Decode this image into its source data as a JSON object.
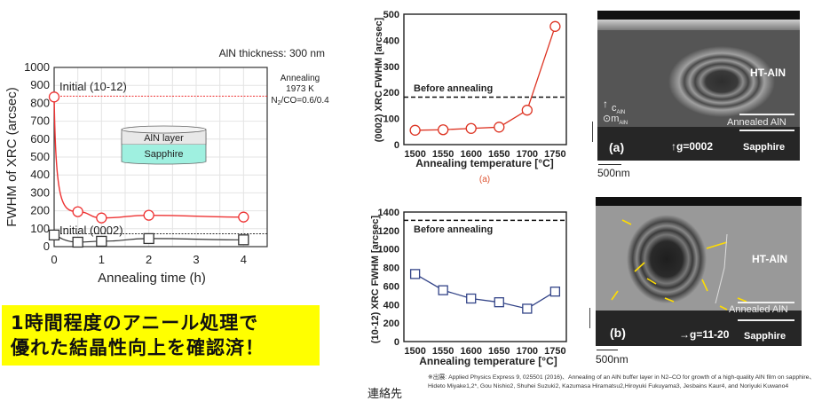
{
  "chart_data": [
    {
      "type": "line",
      "title": "",
      "annotation_top": "AlN thickness: 300 nm",
      "annotation_conditions": [
        "Annealing",
        "1973 K",
        "N2/CO=0.6/0.4"
      ],
      "xlabel": "Annealing time (h)",
      "ylabel": "FWHM of XRC (arcsec)",
      "xlim": [
        0,
        4.5
      ],
      "ylim": [
        0,
        1000
      ],
      "xticks": [
        0,
        1,
        2,
        3,
        4
      ],
      "yticks": [
        0,
        100,
        200,
        300,
        400,
        500,
        600,
        700,
        800,
        900,
        1000
      ],
      "grid": true,
      "x": [
        0,
        0.5,
        1,
        2,
        4
      ],
      "series": [
        {
          "name": "(10-12)",
          "marker": "circle",
          "color": "#ee3333",
          "values": [
            835,
            195,
            160,
            175,
            165
          ]
        },
        {
          "name": "(0002)",
          "marker": "square",
          "color": "#333333",
          "values": [
            65,
            25,
            30,
            45,
            38
          ]
        }
      ],
      "reference_lines": [
        {
          "label": "Initial (10-12)",
          "value": 840,
          "color": "#ee3333",
          "style": "dotted"
        },
        {
          "label": "Initial (0002)",
          "value": 72,
          "color": "#333333",
          "style": "dotted"
        }
      ],
      "inset": {
        "top_layer": "AlN layer",
        "bottom_layer": "Sapphire"
      }
    },
    {
      "type": "line",
      "caption": "(a)",
      "xlabel": "Annealing temperature [°C]",
      "ylabel": "(0002) XRC FWHM [arcsec]",
      "xlim": [
        1480,
        1770
      ],
      "ylim": [
        0,
        500
      ],
      "xticks": [
        1500,
        1550,
        1600,
        1650,
        1700,
        1750
      ],
      "yticks": [
        0,
        100,
        200,
        300,
        400,
        500
      ],
      "grid": false,
      "x": [
        1500,
        1550,
        1600,
        1650,
        1700,
        1750
      ],
      "series": [
        {
          "name": "(0002)",
          "marker": "circle",
          "color": "#dd3322",
          "values": [
            55,
            57,
            62,
            67,
            132,
            453
          ]
        }
      ],
      "reference_lines": [
        {
          "label": "Before annealing",
          "value": 182,
          "color": "#111111",
          "style": "dashed"
        }
      ]
    },
    {
      "type": "line",
      "xlabel": "Annealing temperature [°C]",
      "ylabel": "(10-12) XRC FWHM [arcsec]",
      "xlim": [
        1480,
        1770
      ],
      "ylim": [
        0,
        1400
      ],
      "xticks": [
        1500,
        1550,
        1600,
        1650,
        1700,
        1750
      ],
      "yticks": [
        0,
        200,
        400,
        600,
        800,
        1000,
        1200,
        1400
      ],
      "grid": false,
      "x": [
        1500,
        1550,
        1600,
        1650,
        1700,
        1750
      ],
      "series": [
        {
          "name": "(10-12)",
          "marker": "square",
          "color": "#334488",
          "values": [
            730,
            555,
            465,
            425,
            355,
            540
          ]
        }
      ],
      "reference_lines": [
        {
          "label": "Before annealing",
          "value": 1310,
          "color": "#111111",
          "style": "dashed"
        }
      ]
    }
  ],
  "left_chart": {
    "thickness": "AlN thickness: 300 nm",
    "cond1": "Annealing",
    "cond2": "1973 K",
    "cond3_pre": "N",
    "cond3_sub": "2",
    "cond3_post": "/CO=0.6/0.4",
    "ylabel": "FWHM of XRC (arcsec)",
    "xlabel": "Annealing time (h)",
    "ref1": "Initial (10-12)",
    "ref2": "Initial (0002)",
    "inset_top": "AlN layer",
    "inset_bottom": "Sapphire"
  },
  "mid_top": {
    "ylabel": "(0002) XRC FWHM [arcsec]",
    "xlabel": "Annealing temperature [°C]",
    "ref": "Before annealing",
    "caption": "(a)"
  },
  "mid_bottom": {
    "ylabel": "(10-12) XRC FWHM [arcsec]",
    "xlabel": "Annealing temperature [°C]",
    "ref": "Before annealing"
  },
  "tem_a": {
    "region_top": "HT-AlN",
    "axis_c": "c",
    "axis_c_sub": "AlN",
    "axis_m": "m",
    "axis_m_sub": "AlN",
    "annealed": "Annealed AlN",
    "panel": "(a)",
    "g_vector": "↑g=0002",
    "substrate": "Sapphire",
    "scale": "500nm"
  },
  "tem_b": {
    "region_top": "HT-AlN",
    "annealed": "Annealed AlN",
    "panel": "(b)",
    "g_vector": "→g=11-20",
    "substrate": "Sapphire",
    "scale": "500nm"
  },
  "banner": {
    "line1": "1時間程度のアニール処理で",
    "line2": "優れた結晶性向上を確認済！",
    "bg_color": "#ffff00"
  },
  "citation": "※出展: Applied Physics Express 9, 025501 (2016)、Annealing of an AlN buffer layer in N2–CO for growth  of a high-quality AlN film on sapphire、Hideto Miyake1,2*, Gou Nishio2, Shuhei Suzuki2, Kazumasa Hiramatsu2,Hiroyuki Fukuyama3, Jesbains Kaur4, and Noriyuki Kuwano4",
  "contact": "連絡先"
}
